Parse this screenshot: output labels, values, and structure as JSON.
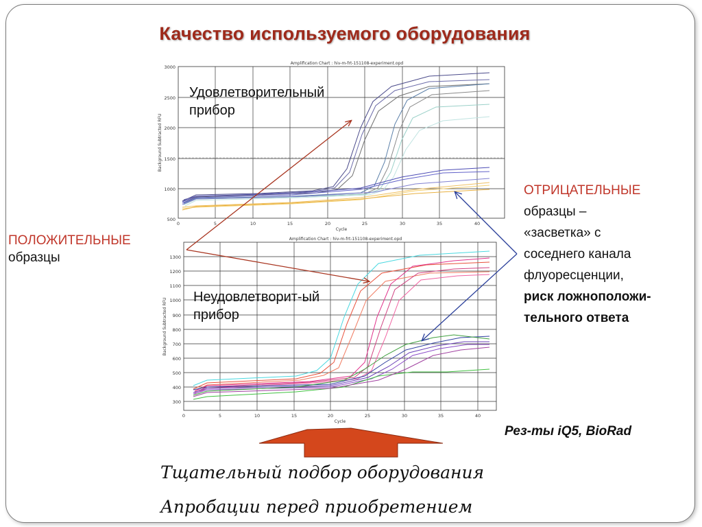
{
  "title": "Качество используемого оборудования",
  "charts": {
    "top": {
      "title": "Amplification Chart : hiv-m-frt-151108-experiment.opd",
      "ylabel": "Background Subtracted RFU",
      "xlabel": "Cycle",
      "y_ticks": [
        "3000",
        "2500",
        "2000",
        "1500",
        "1000",
        "500"
      ],
      "x_ticks": [
        "0",
        "5",
        "10",
        "15",
        "20",
        "25",
        "30",
        "35",
        "40"
      ]
    },
    "bottom": {
      "title": "Amplification Chart : hiv-m-frt-151108-experiment.opd",
      "ylabel": "Background Subtracted RFU",
      "xlabel": "Cycle",
      "y_ticks": [
        "1300",
        "1200",
        "1100",
        "1000",
        "900",
        "800",
        "700",
        "600",
        "500",
        "400",
        "300"
      ],
      "x_ticks": [
        "0",
        "5",
        "10",
        "15",
        "20",
        "25",
        "30",
        "35",
        "40"
      ]
    }
  },
  "labels": {
    "good_device_1": "Удовлетворительный",
    "good_device_2": "прибор",
    "bad_device_1": "Неудовлетворит-ый",
    "bad_device_2": "прибор",
    "positive_caps": "ПОЛОЖИТЕЛЬНЫЕ",
    "positive_rest": "образцы",
    "negative_caps": "ОТРИЦАТЕЛЬНЫЕ",
    "negative_line2": "образцы –",
    "negative_line3": "«засветка» с",
    "negative_line4": "соседнего канала",
    "negative_line5": "флуоресценции,",
    "negative_line6": "риск ложноположи-",
    "negative_line7": "тельного  ответа",
    "source": "Рез-ты iQ5, BioRad",
    "footer_1": "Тщательный подбор оборудования",
    "footer_2": "Апробации перед приобретением"
  },
  "colors": {
    "title": "#9e2a1b",
    "accent_red": "#c0362a",
    "arrow_fill": "#d4471c",
    "arrow_line_red": "#a8341f",
    "arrow_line_blue": "#2a3f9a"
  }
}
